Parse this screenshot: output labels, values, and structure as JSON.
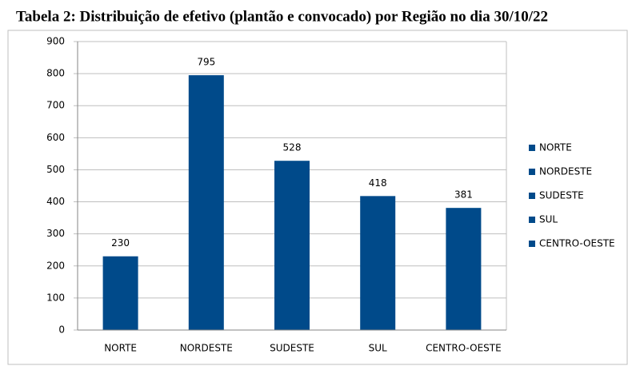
{
  "chart_data": {
    "type": "bar",
    "title": "Tabela 2:  Distribuição de efetivo (plantão e convocado) por Região no dia 30/10/22",
    "categories": [
      "NORTE",
      "NORDESTE",
      "SUDESTE",
      "SUL",
      "CENTRO-OESTE"
    ],
    "values": [
      230,
      795,
      528,
      418,
      381
    ],
    "color": "#004a8a",
    "ylim": [
      0,
      900
    ],
    "yticks": [
      0,
      100,
      200,
      300,
      400,
      500,
      600,
      700,
      800,
      900
    ],
    "grid": true,
    "legend": "right"
  }
}
